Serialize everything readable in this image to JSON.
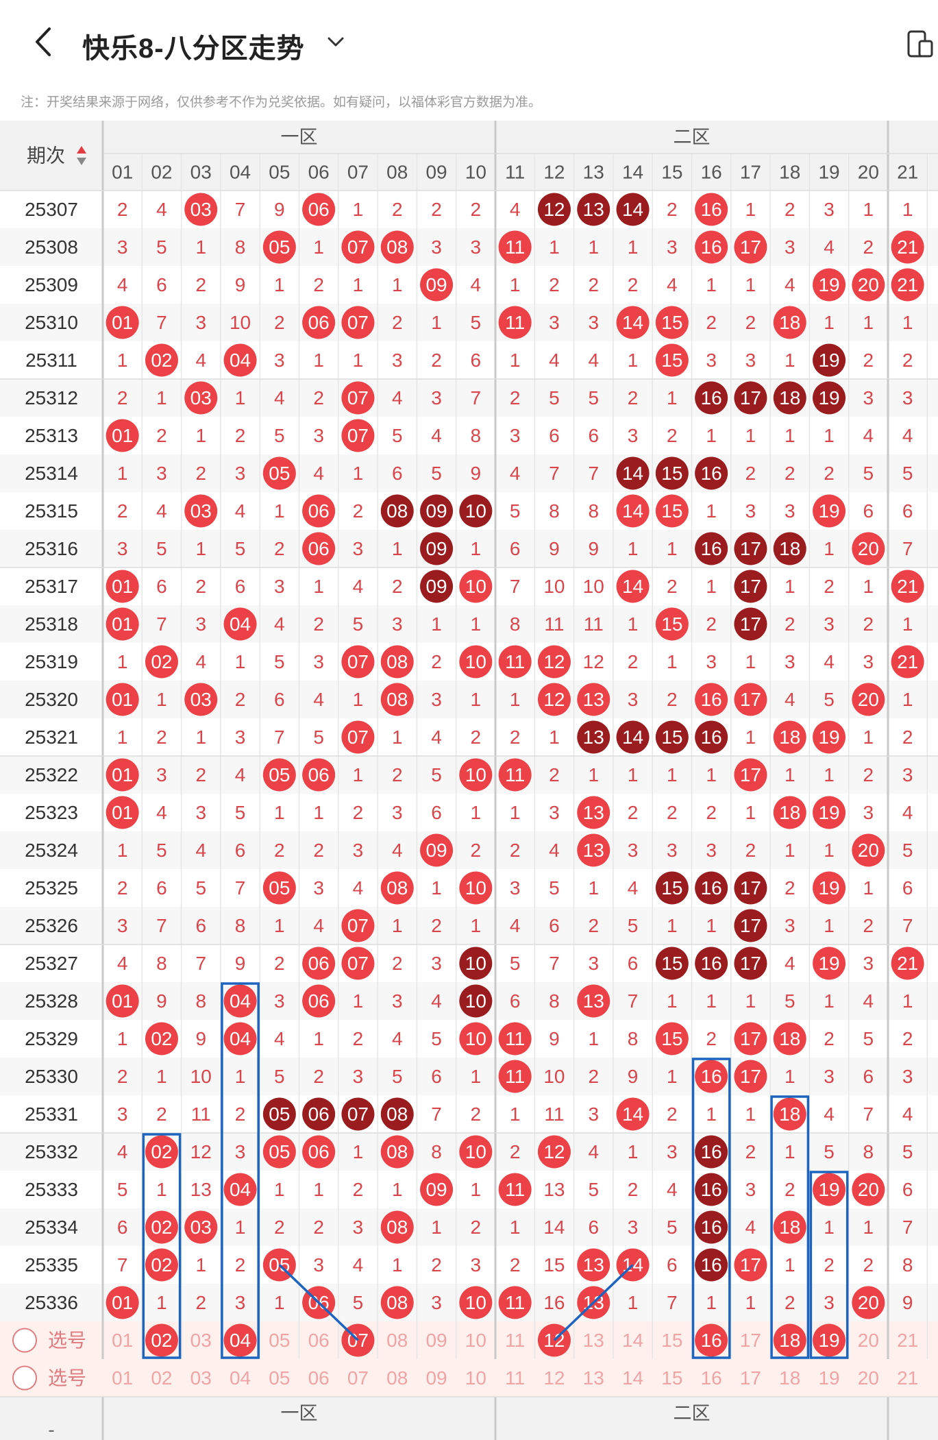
{
  "header": {
    "title": "快乐8-八分区走势",
    "back_icon": "chevron-left-icon",
    "dropdown_icon": "chevron-down-icon",
    "device_icon": "device-icon"
  },
  "notice": "注：开奖结果来源于网络，仅供参考不作为兑奖依据。如有疑问，以福体彩官方数据为准。",
  "table": {
    "period_header": "期次",
    "zone_labels": [
      "一区",
      "二区"
    ],
    "columns": [
      "01",
      "02",
      "03",
      "04",
      "05",
      "06",
      "07",
      "08",
      "09",
      "10",
      "11",
      "12",
      "13",
      "14",
      "15",
      "16",
      "17",
      "18",
      "19",
      "20",
      "21"
    ],
    "select_label": "选号",
    "footer_period": "-",
    "rows": [
      {
        "issue": "25307",
        "cells": [
          "2",
          "4",
          "03",
          "7",
          "9",
          "06",
          "1",
          "2",
          "2",
          "2",
          "4",
          "12",
          "13",
          "14",
          "2",
          "16",
          "1",
          "2",
          "3",
          "1",
          "1"
        ]
      },
      {
        "issue": "25308",
        "cells": [
          "3",
          "5",
          "1",
          "8",
          "05",
          "1",
          "07",
          "08",
          "3",
          "3",
          "11",
          "1",
          "1",
          "1",
          "3",
          "16",
          "17",
          "3",
          "4",
          "2",
          "21"
        ]
      },
      {
        "issue": "25309",
        "cells": [
          "4",
          "6",
          "2",
          "9",
          "1",
          "2",
          "1",
          "1",
          "09",
          "4",
          "1",
          "2",
          "2",
          "2",
          "4",
          "1",
          "1",
          "4",
          "19",
          "20",
          "21"
        ]
      },
      {
        "issue": "25310",
        "cells": [
          "01",
          "7",
          "3",
          "10",
          "2",
          "06",
          "07",
          "2",
          "1",
          "5",
          "11",
          "3",
          "3",
          "14",
          "15",
          "2",
          "2",
          "18",
          "1",
          "1",
          "1"
        ]
      },
      {
        "issue": "25311",
        "cells": [
          "1",
          "02",
          "4",
          "04",
          "3",
          "1",
          "1",
          "3",
          "2",
          "6",
          "1",
          "4",
          "4",
          "1",
          "15",
          "3",
          "3",
          "1",
          "19",
          "2",
          "2"
        ]
      },
      {
        "issue": "25312",
        "cells": [
          "2",
          "1",
          "03",
          "1",
          "4",
          "2",
          "07",
          "4",
          "3",
          "7",
          "2",
          "5",
          "5",
          "2",
          "1",
          "16",
          "17",
          "18",
          "19",
          "3",
          "3"
        ]
      },
      {
        "issue": "25313",
        "cells": [
          "01",
          "2",
          "1",
          "2",
          "5",
          "3",
          "07",
          "5",
          "4",
          "8",
          "3",
          "6",
          "6",
          "3",
          "2",
          "1",
          "1",
          "1",
          "1",
          "4",
          "4"
        ]
      },
      {
        "issue": "25314",
        "cells": [
          "1",
          "3",
          "2",
          "3",
          "05",
          "4",
          "1",
          "6",
          "5",
          "9",
          "4",
          "7",
          "7",
          "14",
          "15",
          "16",
          "2",
          "2",
          "2",
          "5",
          "5"
        ]
      },
      {
        "issue": "25315",
        "cells": [
          "2",
          "4",
          "03",
          "4",
          "1",
          "06",
          "2",
          "08",
          "09",
          "10",
          "5",
          "8",
          "8",
          "14",
          "15",
          "1",
          "3",
          "3",
          "19",
          "6",
          "6"
        ]
      },
      {
        "issue": "25316",
        "cells": [
          "3",
          "5",
          "1",
          "5",
          "2",
          "06",
          "3",
          "1",
          "09",
          "1",
          "6",
          "9",
          "9",
          "1",
          "1",
          "16",
          "17",
          "18",
          "1",
          "20",
          "7"
        ]
      },
      {
        "issue": "25317",
        "cells": [
          "01",
          "6",
          "2",
          "6",
          "3",
          "1",
          "4",
          "2",
          "09",
          "10",
          "7",
          "10",
          "10",
          "14",
          "2",
          "1",
          "17",
          "1",
          "2",
          "1",
          "21"
        ]
      },
      {
        "issue": "25318",
        "cells": [
          "01",
          "7",
          "3",
          "04",
          "4",
          "2",
          "5",
          "3",
          "1",
          "1",
          "8",
          "11",
          "11",
          "1",
          "15",
          "2",
          "17",
          "2",
          "3",
          "2",
          "1"
        ]
      },
      {
        "issue": "25319",
        "cells": [
          "1",
          "02",
          "4",
          "1",
          "5",
          "3",
          "07",
          "08",
          "2",
          "10",
          "11",
          "12",
          "12",
          "2",
          "1",
          "3",
          "1",
          "3",
          "4",
          "3",
          "21"
        ]
      },
      {
        "issue": "25320",
        "cells": [
          "01",
          "1",
          "03",
          "2",
          "6",
          "4",
          "1",
          "08",
          "3",
          "1",
          "1",
          "12",
          "13",
          "3",
          "2",
          "16",
          "17",
          "4",
          "5",
          "20",
          "1"
        ]
      },
      {
        "issue": "25321",
        "cells": [
          "1",
          "2",
          "1",
          "3",
          "7",
          "5",
          "07",
          "1",
          "4",
          "2",
          "2",
          "1",
          "13",
          "14",
          "15",
          "16",
          "1",
          "18",
          "19",
          "1",
          "2"
        ]
      },
      {
        "issue": "25322",
        "cells": [
          "01",
          "3",
          "2",
          "4",
          "05",
          "06",
          "1",
          "2",
          "5",
          "10",
          "11",
          "2",
          "1",
          "1",
          "1",
          "1",
          "17",
          "1",
          "1",
          "2",
          "3"
        ]
      },
      {
        "issue": "25323",
        "cells": [
          "01",
          "4",
          "3",
          "5",
          "1",
          "1",
          "2",
          "3",
          "6",
          "1",
          "1",
          "3",
          "13",
          "2",
          "2",
          "2",
          "1",
          "18",
          "19",
          "3",
          "4"
        ]
      },
      {
        "issue": "25324",
        "cells": [
          "1",
          "5",
          "4",
          "6",
          "2",
          "2",
          "3",
          "4",
          "09",
          "2",
          "2",
          "4",
          "13",
          "3",
          "3",
          "3",
          "2",
          "1",
          "1",
          "20",
          "5"
        ]
      },
      {
        "issue": "25325",
        "cells": [
          "2",
          "6",
          "5",
          "7",
          "05",
          "3",
          "4",
          "08",
          "1",
          "10",
          "3",
          "5",
          "1",
          "4",
          "15",
          "16",
          "17",
          "2",
          "19",
          "1",
          "6"
        ]
      },
      {
        "issue": "25326",
        "cells": [
          "3",
          "7",
          "6",
          "8",
          "1",
          "4",
          "07",
          "1",
          "2",
          "1",
          "4",
          "6",
          "2",
          "5",
          "1",
          "1",
          "17",
          "3",
          "1",
          "2",
          "7"
        ]
      },
      {
        "issue": "25327",
        "cells": [
          "4",
          "8",
          "7",
          "9",
          "2",
          "06",
          "07",
          "2",
          "3",
          "10",
          "5",
          "7",
          "3",
          "6",
          "15",
          "16",
          "17",
          "4",
          "19",
          "3",
          "21"
        ]
      },
      {
        "issue": "25328",
        "cells": [
          "01",
          "9",
          "8",
          "04",
          "3",
          "06",
          "1",
          "3",
          "4",
          "10",
          "6",
          "8",
          "13",
          "7",
          "1",
          "1",
          "1",
          "5",
          "1",
          "4",
          "1"
        ]
      },
      {
        "issue": "25329",
        "cells": [
          "1",
          "02",
          "9",
          "04",
          "4",
          "1",
          "2",
          "4",
          "5",
          "10",
          "11",
          "9",
          "1",
          "8",
          "15",
          "2",
          "17",
          "18",
          "2",
          "5",
          "2"
        ]
      },
      {
        "issue": "25330",
        "cells": [
          "2",
          "1",
          "10",
          "1",
          "5",
          "2",
          "3",
          "5",
          "6",
          "1",
          "11",
          "10",
          "2",
          "9",
          "1",
          "16",
          "17",
          "1",
          "3",
          "6",
          "3"
        ]
      },
      {
        "issue": "25331",
        "cells": [
          "3",
          "2",
          "11",
          "2",
          "05",
          "06",
          "07",
          "08",
          "7",
          "2",
          "1",
          "11",
          "3",
          "14",
          "2",
          "1",
          "1",
          "18",
          "4",
          "7",
          "4"
        ]
      },
      {
        "issue": "25332",
        "cells": [
          "4",
          "02",
          "12",
          "3",
          "05",
          "06",
          "1",
          "08",
          "8",
          "10",
          "2",
          "12",
          "4",
          "1",
          "3",
          "16",
          "2",
          "1",
          "5",
          "8",
          "5"
        ]
      },
      {
        "issue": "25333",
        "cells": [
          "5",
          "1",
          "13",
          "04",
          "1",
          "1",
          "2",
          "1",
          "09",
          "1",
          "11",
          "13",
          "5",
          "2",
          "4",
          "16",
          "3",
          "2",
          "19",
          "20",
          "6"
        ]
      },
      {
        "issue": "25334",
        "cells": [
          "6",
          "02",
          "03",
          "1",
          "2",
          "2",
          "3",
          "08",
          "1",
          "2",
          "1",
          "14",
          "6",
          "3",
          "5",
          "16",
          "4",
          "18",
          "1",
          "1",
          "7"
        ]
      },
      {
        "issue": "25335",
        "cells": [
          "7",
          "02",
          "1",
          "2",
          "05",
          "3",
          "4",
          "1",
          "2",
          "3",
          "2",
          "15",
          "13",
          "14",
          "6",
          "16",
          "17",
          "1",
          "2",
          "2",
          "8"
        ]
      },
      {
        "issue": "25336",
        "cells": [
          "01",
          "1",
          "2",
          "3",
          "1",
          "06",
          "5",
          "08",
          "3",
          "10",
          "11",
          "16",
          "13",
          "1",
          "7",
          "1",
          "1",
          "2",
          "3",
          "20",
          "9"
        ]
      }
    ],
    "dark_balls": [
      "0-11",
      "0-12",
      "0-13",
      "4-18",
      "4-19",
      "5-15",
      "5-16",
      "5-17",
      "5-18",
      "7-13",
      "7-14",
      "7-15",
      "8-7",
      "8-8",
      "8-9",
      "9-8",
      "9-15",
      "9-16",
      "9-17",
      "10-8",
      "10-16",
      "11-16",
      "14-12",
      "14-13",
      "14-14",
      "14-15",
      "18-14",
      "18-15",
      "18-16",
      "19-16",
      "20-9",
      "20-14",
      "20-15",
      "20-16",
      "21-9",
      "24-4",
      "24-5",
      "24-6",
      "24-7",
      "25-15",
      "26-15",
      "27-15",
      "28-15"
    ],
    "select_picks": [
      "02",
      "04",
      "07",
      "12",
      "16",
      "18",
      "19"
    ]
  },
  "colors": {
    "red_ball": "#ec4147",
    "dark_ball": "#9a1c1f",
    "miss_text": "#d9454b",
    "header_bg": "#f2f2f2",
    "highlight_line": "#1d64be",
    "select_row_bg": "#fdf0ed"
  }
}
